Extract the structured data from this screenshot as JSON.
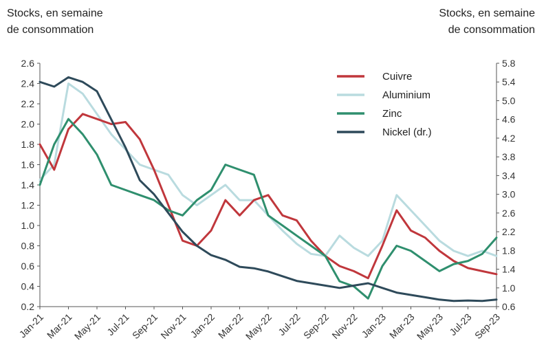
{
  "chart_data": {
    "type": "line",
    "ylabel_left_line1": "Stocks, en semaine",
    "ylabel_left_line2": "de consommation",
    "ylabel_right_line1": "Stocks, en semaine",
    "ylabel_right_line2": "de consommation",
    "ylim_left": [
      0.2,
      2.6
    ],
    "ylim_right": [
      0.6,
      5.8
    ],
    "yticks_left": [
      "0.2",
      "0.4",
      "0.6",
      "0.8",
      "1.0",
      "1.2",
      "1.4",
      "1.6",
      "1.8",
      "2.0",
      "2.2",
      "2.4",
      "2.6"
    ],
    "yticks_right": [
      "0.6",
      "1.0",
      "1.4",
      "1.8",
      "2.2",
      "2.6",
      "3.0",
      "3.4",
      "3.8",
      "4.2",
      "4.6",
      "5.0",
      "5.4",
      "5.8"
    ],
    "xticks": [
      "Jan-21",
      "Mar-21",
      "May-21",
      "Jul-21",
      "Sep-21",
      "Nov-21",
      "Jan-22",
      "Mar-22",
      "May-22",
      "Jul-22",
      "Sep-22",
      "Nov-22",
      "Jan-23",
      "Mar-23",
      "May-23",
      "Jul-23",
      "Sep-23"
    ],
    "x_months": [
      0,
      1,
      2,
      3,
      4,
      5,
      6,
      7,
      8,
      9,
      10,
      11,
      12,
      13,
      14,
      15,
      16,
      17,
      18,
      19,
      20,
      21,
      22,
      23,
      24,
      25,
      26,
      27,
      28,
      29,
      30,
      31,
      32
    ],
    "series": [
      {
        "name": "Cuivre",
        "color": "#c0373c",
        "axis": "left",
        "values": [
          1.8,
          1.55,
          1.95,
          2.1,
          2.05,
          2.0,
          2.02,
          1.85,
          1.55,
          1.2,
          0.85,
          0.8,
          0.95,
          1.25,
          1.1,
          1.25,
          1.3,
          1.1,
          1.05,
          0.85,
          0.7,
          0.6,
          0.55,
          0.48,
          0.8,
          1.15,
          0.95,
          0.88,
          0.75,
          0.65,
          0.58,
          0.55,
          0.52
        ]
      },
      {
        "name": "Aluminium",
        "color": "#b9dbdf",
        "axis": "left",
        "values": [
          1.45,
          1.6,
          2.4,
          2.3,
          2.1,
          1.9,
          1.75,
          1.6,
          1.55,
          1.5,
          1.3,
          1.2,
          1.3,
          1.4,
          1.25,
          1.25,
          1.1,
          0.95,
          0.82,
          0.72,
          0.7,
          0.9,
          0.78,
          0.7,
          0.85,
          1.3,
          1.15,
          1.0,
          0.85,
          0.75,
          0.7,
          0.75,
          0.7
        ]
      },
      {
        "name": "Zinc",
        "color": "#2f8f6e",
        "axis": "left",
        "values": [
          1.4,
          1.8,
          2.05,
          1.9,
          1.7,
          1.4,
          1.35,
          1.3,
          1.25,
          1.15,
          1.1,
          1.25,
          1.35,
          1.6,
          1.55,
          1.5,
          1.1,
          1.0,
          0.9,
          0.8,
          0.7,
          0.45,
          0.4,
          0.28,
          0.6,
          0.8,
          0.75,
          0.65,
          0.55,
          0.62,
          0.65,
          0.72,
          0.88
        ]
      },
      {
        "name": "Nickel (dr.)",
        "color": "#2e4a5a",
        "axis": "right",
        "values": [
          5.4,
          5.3,
          5.5,
          5.4,
          5.2,
          4.6,
          4.0,
          3.3,
          3.0,
          2.6,
          2.2,
          1.9,
          1.7,
          1.6,
          1.45,
          1.42,
          1.35,
          1.25,
          1.15,
          1.1,
          1.05,
          1.0,
          1.05,
          1.1,
          1.0,
          0.9,
          0.85,
          0.8,
          0.75,
          0.72,
          0.73,
          0.72,
          0.75
        ]
      }
    ],
    "legend_position": "top-right",
    "grid": false
  }
}
